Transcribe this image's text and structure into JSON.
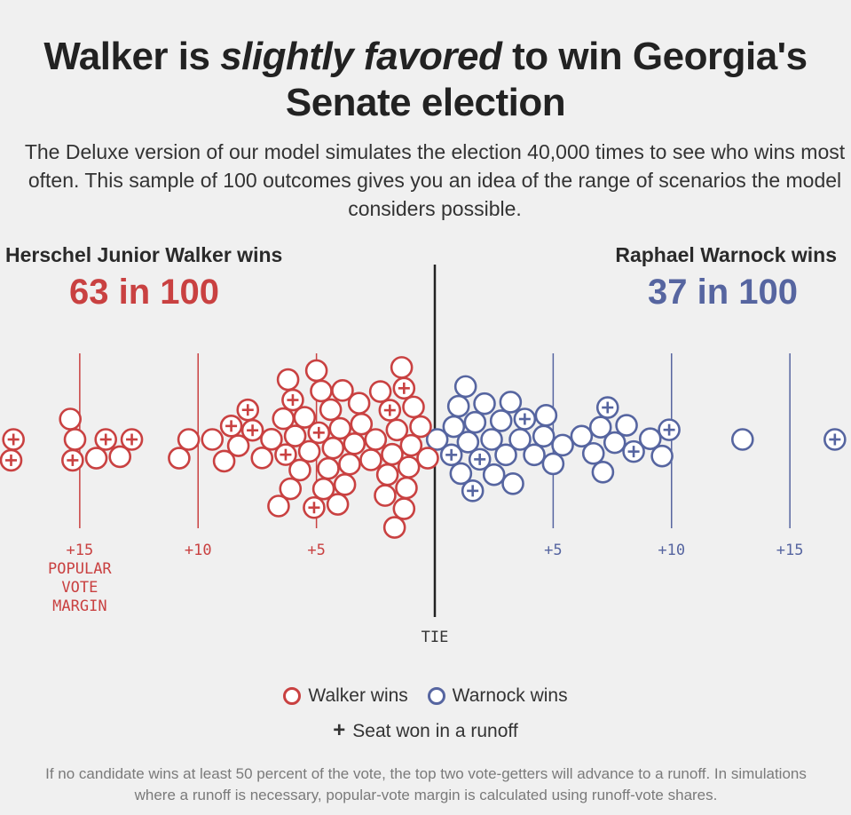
{
  "header": {
    "title_part1": "Walker is ",
    "title_emph": "slightly favored",
    "title_part2": " to win Georgia's Senate election",
    "subtitle": "The Deluxe version of our model simulates the election 40,000 times to see who wins most often. This sample of 100 outcomes gives you an idea of the range of scenarios the model considers possible."
  },
  "candidates": {
    "left": {
      "label": "Herschel Junior Walker wins",
      "count": "63 in 100",
      "color": "#c94141"
    },
    "right": {
      "label": "Raphael Warnock wins",
      "count": "37 in 100",
      "color": "#5665a0"
    }
  },
  "legend": {
    "walker": "Walker wins",
    "warnock": "Warnock wins",
    "runoff_symbol": "+",
    "runoff": "Seat won in a runoff"
  },
  "footnote": "If no candidate wins at least 50 percent of the vote, the top two vote-getters will advance to a runoff. In simulations where a runoff is necessary, popular-vote margin is calculated using runoff-vote shares.",
  "chart_data": {
    "type": "scatter",
    "title": "",
    "xlabel": "POPULAR VOTE MARGIN",
    "center_label": "TIE",
    "xlim": [
      -17.6,
      17.6
    ],
    "left_ticks": [
      {
        "value": -15,
        "label": "+15"
      },
      {
        "value": -10,
        "label": "+10"
      },
      {
        "value": -5,
        "label": "+5"
      }
    ],
    "right_ticks": [
      {
        "value": 5,
        "label": "+5"
      },
      {
        "value": 10,
        "label": "+10"
      },
      {
        "value": 15,
        "label": "+15"
      }
    ],
    "colors": {
      "walker": "#c94141",
      "warnock": "#5665a0"
    },
    "series": [
      {
        "name": "Walker wins",
        "margins": [
          -17.9,
          -17.8,
          -15.4,
          -15.3,
          -15.2,
          -14.3,
          -13.9,
          -13.3,
          -12.8,
          -10.8,
          -10.4,
          -9.4,
          -8.9,
          -8.6,
          -8.3,
          -7.9,
          -7.7,
          -7.3,
          -6.9,
          -6.6,
          -6.4,
          -6.3,
          -6.2,
          -6.1,
          -6.0,
          -5.9,
          -5.7,
          -5.5,
          -5.3,
          -5.1,
          -5.0,
          -4.9,
          -4.8,
          -4.7,
          -4.5,
          -4.4,
          -4.3,
          -4.1,
          -4.0,
          -3.9,
          -3.8,
          -3.6,
          -3.4,
          -3.2,
          -3.1,
          -2.7,
          -2.5,
          -2.3,
          -2.1,
          -2.0,
          -1.9,
          -1.8,
          -1.7,
          -1.6,
          -1.4,
          -1.3,
          -1.3,
          -1.2,
          -1.1,
          -1.0,
          -0.9,
          -0.6,
          -0.3
        ],
        "runoff": [
          -17.9,
          -17.8,
          -15.3,
          -13.9,
          -12.8,
          -8.6,
          -7.7,
          -7.9,
          -6.3,
          -6.0,
          -5.1,
          -4.9,
          -1.9,
          -1.3
        ]
      },
      {
        "name": "Warnock wins",
        "margins": [
          0.1,
          0.7,
          0.8,
          1.0,
          1.1,
          1.3,
          1.4,
          1.6,
          1.7,
          1.9,
          2.1,
          2.4,
          2.5,
          2.8,
          3.0,
          3.2,
          3.3,
          3.6,
          3.8,
          4.2,
          4.6,
          4.7,
          5.0,
          5.4,
          6.2,
          6.7,
          7.0,
          7.1,
          7.3,
          7.6,
          8.1,
          8.4,
          9.1,
          9.6,
          9.9,
          13.0,
          16.9
        ],
        "runoff": [
          0.7,
          1.6,
          1.9,
          3.8,
          7.3,
          8.4,
          9.9,
          16.9
        ]
      }
    ]
  }
}
